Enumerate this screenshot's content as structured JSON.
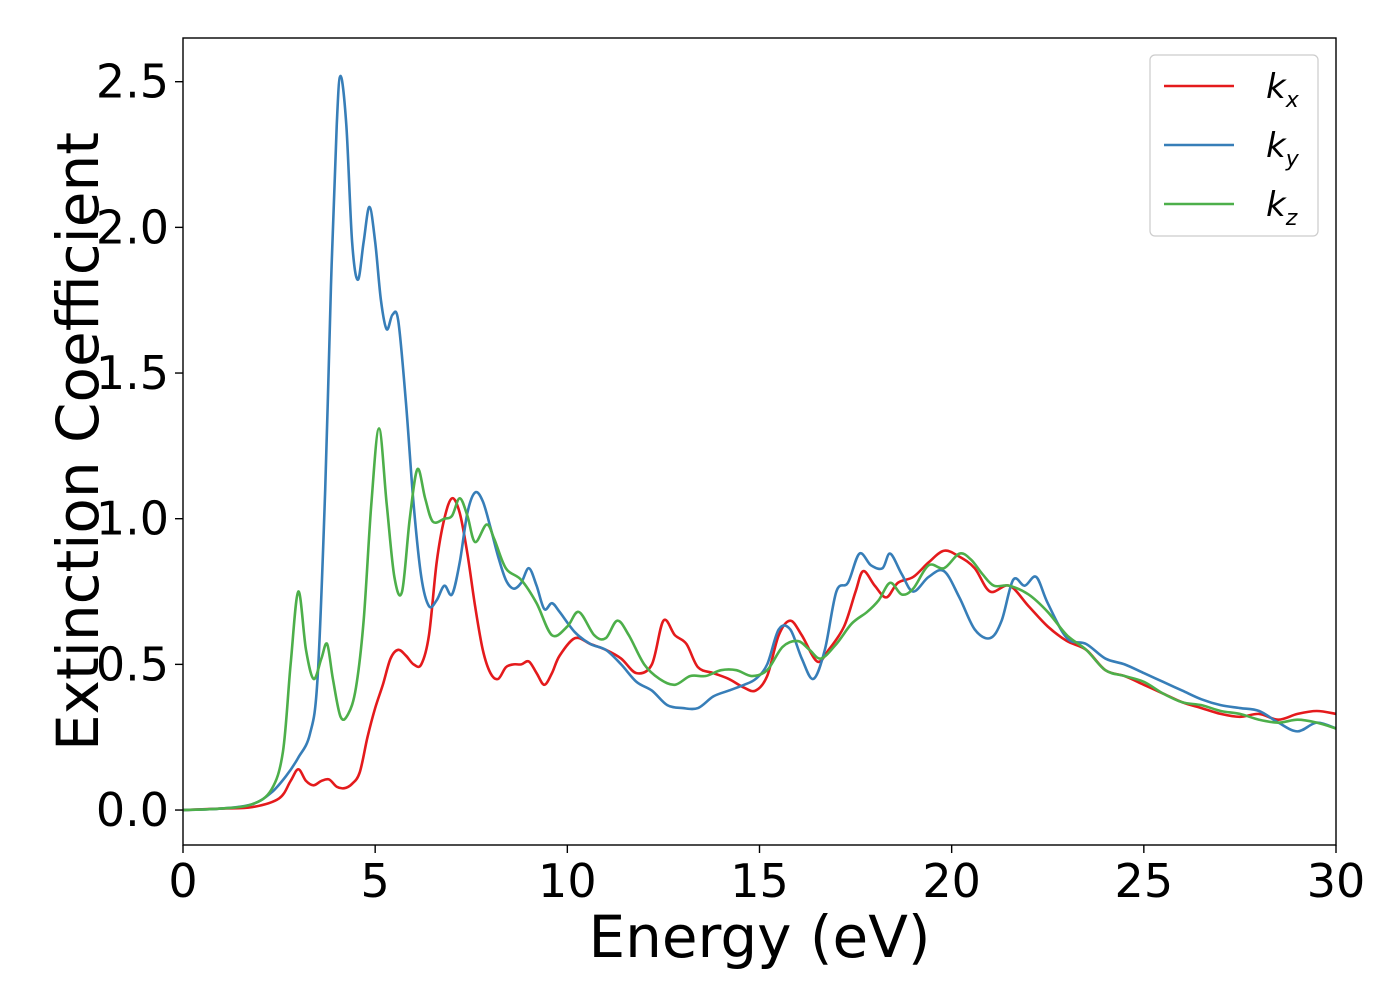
{
  "chart_data": {
    "type": "line",
    "title": "",
    "xlabel": "Energy (eV)",
    "ylabel": "Extinction Coefficient",
    "xlim": [
      0,
      30
    ],
    "ylim": [
      -0.12,
      2.65
    ],
    "xticks": [
      0,
      5,
      10,
      15,
      20,
      25,
      30
    ],
    "xtick_labels": [
      "0",
      "5",
      "10",
      "15",
      "20",
      "25",
      "30"
    ],
    "yticks": [
      0.0,
      0.5,
      1.0,
      1.5,
      2.0,
      2.5
    ],
    "ytick_labels": [
      "0.0",
      "0.5",
      "1.0",
      "1.5",
      "2.0",
      "2.5"
    ],
    "grid": false,
    "legend": {
      "position": "top-right"
    },
    "series": [
      {
        "name": "k_x",
        "label_base": "k",
        "label_sub": "x",
        "color": "#e41a1c",
        "points": [
          [
            0,
            0
          ],
          [
            1,
            0.005
          ],
          [
            1.8,
            0.01
          ],
          [
            2.5,
            0.04
          ],
          [
            2.8,
            0.1
          ],
          [
            3.0,
            0.14
          ],
          [
            3.2,
            0.1
          ],
          [
            3.4,
            0.085
          ],
          [
            3.6,
            0.1
          ],
          [
            3.8,
            0.105
          ],
          [
            4.0,
            0.08
          ],
          [
            4.2,
            0.075
          ],
          [
            4.4,
            0.09
          ],
          [
            4.6,
            0.13
          ],
          [
            4.8,
            0.25
          ],
          [
            5.0,
            0.35
          ],
          [
            5.2,
            0.43
          ],
          [
            5.4,
            0.52
          ],
          [
            5.6,
            0.55
          ],
          [
            5.8,
            0.53
          ],
          [
            6.0,
            0.5
          ],
          [
            6.2,
            0.5
          ],
          [
            6.4,
            0.6
          ],
          [
            6.6,
            0.85
          ],
          [
            6.8,
            1.0
          ],
          [
            7.0,
            1.07
          ],
          [
            7.2,
            1.02
          ],
          [
            7.4,
            0.88
          ],
          [
            7.6,
            0.7
          ],
          [
            7.8,
            0.55
          ],
          [
            8.0,
            0.47
          ],
          [
            8.2,
            0.45
          ],
          [
            8.4,
            0.49
          ],
          [
            8.6,
            0.5
          ],
          [
            8.8,
            0.5
          ],
          [
            9.0,
            0.51
          ],
          [
            9.2,
            0.47
          ],
          [
            9.4,
            0.43
          ],
          [
            9.6,
            0.47
          ],
          [
            9.8,
            0.53
          ],
          [
            10.2,
            0.59
          ],
          [
            10.6,
            0.57
          ],
          [
            11.0,
            0.55
          ],
          [
            11.4,
            0.52
          ],
          [
            11.8,
            0.47
          ],
          [
            12.2,
            0.5
          ],
          [
            12.5,
            0.65
          ],
          [
            12.8,
            0.6
          ],
          [
            13.1,
            0.57
          ],
          [
            13.4,
            0.49
          ],
          [
            13.8,
            0.47
          ],
          [
            14.2,
            0.45
          ],
          [
            14.6,
            0.42
          ],
          [
            14.9,
            0.41
          ],
          [
            15.2,
            0.46
          ],
          [
            15.5,
            0.6
          ],
          [
            15.8,
            0.65
          ],
          [
            16.1,
            0.6
          ],
          [
            16.5,
            0.51
          ],
          [
            16.8,
            0.55
          ],
          [
            17.2,
            0.63
          ],
          [
            17.5,
            0.75
          ],
          [
            17.7,
            0.82
          ],
          [
            18.0,
            0.77
          ],
          [
            18.3,
            0.73
          ],
          [
            18.6,
            0.78
          ],
          [
            19.0,
            0.8
          ],
          [
            19.4,
            0.85
          ],
          [
            19.8,
            0.89
          ],
          [
            20.2,
            0.87
          ],
          [
            20.6,
            0.83
          ],
          [
            21.0,
            0.75
          ],
          [
            21.5,
            0.77
          ],
          [
            22.0,
            0.7
          ],
          [
            22.5,
            0.63
          ],
          [
            23.0,
            0.58
          ],
          [
            23.5,
            0.55
          ],
          [
            24.0,
            0.48
          ],
          [
            24.5,
            0.46
          ],
          [
            25.0,
            0.43
          ],
          [
            25.5,
            0.4
          ],
          [
            26.0,
            0.37
          ],
          [
            26.5,
            0.35
          ],
          [
            27.0,
            0.33
          ],
          [
            27.5,
            0.32
          ],
          [
            28.0,
            0.33
          ],
          [
            28.5,
            0.31
          ],
          [
            29.0,
            0.33
          ],
          [
            29.5,
            0.34
          ],
          [
            30.0,
            0.33
          ]
        ]
      },
      {
        "name": "k_y",
        "label_base": "k",
        "label_sub": "y",
        "color": "#377eb8",
        "points": [
          [
            0,
            0
          ],
          [
            1,
            0.005
          ],
          [
            1.8,
            0.02
          ],
          [
            2.3,
            0.06
          ],
          [
            2.7,
            0.12
          ],
          [
            3.0,
            0.18
          ],
          [
            3.3,
            0.26
          ],
          [
            3.5,
            0.45
          ],
          [
            3.7,
            1.1
          ],
          [
            3.85,
            1.8
          ],
          [
            4.0,
            2.35
          ],
          [
            4.1,
            2.52
          ],
          [
            4.25,
            2.35
          ],
          [
            4.4,
            1.95
          ],
          [
            4.55,
            1.82
          ],
          [
            4.7,
            1.95
          ],
          [
            4.85,
            2.07
          ],
          [
            5.0,
            1.95
          ],
          [
            5.15,
            1.75
          ],
          [
            5.3,
            1.65
          ],
          [
            5.45,
            1.7
          ],
          [
            5.6,
            1.68
          ],
          [
            5.8,
            1.4
          ],
          [
            6.0,
            1.05
          ],
          [
            6.2,
            0.8
          ],
          [
            6.4,
            0.7
          ],
          [
            6.6,
            0.72
          ],
          [
            6.8,
            0.77
          ],
          [
            7.0,
            0.74
          ],
          [
            7.2,
            0.85
          ],
          [
            7.4,
            1.02
          ],
          [
            7.6,
            1.09
          ],
          [
            7.8,
            1.06
          ],
          [
            8.0,
            0.97
          ],
          [
            8.2,
            0.87
          ],
          [
            8.4,
            0.79
          ],
          [
            8.6,
            0.76
          ],
          [
            8.8,
            0.78
          ],
          [
            9.0,
            0.83
          ],
          [
            9.2,
            0.77
          ],
          [
            9.4,
            0.69
          ],
          [
            9.6,
            0.71
          ],
          [
            9.8,
            0.68
          ],
          [
            10.2,
            0.61
          ],
          [
            10.6,
            0.57
          ],
          [
            11.0,
            0.55
          ],
          [
            11.4,
            0.5
          ],
          [
            11.8,
            0.44
          ],
          [
            12.2,
            0.41
          ],
          [
            12.6,
            0.36
          ],
          [
            13.0,
            0.35
          ],
          [
            13.4,
            0.35
          ],
          [
            13.8,
            0.39
          ],
          [
            14.2,
            0.41
          ],
          [
            14.6,
            0.43
          ],
          [
            14.9,
            0.45
          ],
          [
            15.2,
            0.5
          ],
          [
            15.5,
            0.62
          ],
          [
            15.8,
            0.62
          ],
          [
            16.1,
            0.52
          ],
          [
            16.4,
            0.45
          ],
          [
            16.7,
            0.55
          ],
          [
            17.0,
            0.75
          ],
          [
            17.3,
            0.78
          ],
          [
            17.6,
            0.88
          ],
          [
            17.9,
            0.84
          ],
          [
            18.2,
            0.83
          ],
          [
            18.4,
            0.88
          ],
          [
            18.7,
            0.81
          ],
          [
            19.0,
            0.75
          ],
          [
            19.4,
            0.8
          ],
          [
            19.8,
            0.82
          ],
          [
            20.2,
            0.73
          ],
          [
            20.6,
            0.62
          ],
          [
            21.0,
            0.59
          ],
          [
            21.3,
            0.65
          ],
          [
            21.6,
            0.79
          ],
          [
            21.9,
            0.77
          ],
          [
            22.2,
            0.8
          ],
          [
            22.5,
            0.71
          ],
          [
            23.0,
            0.59
          ],
          [
            23.5,
            0.57
          ],
          [
            24.0,
            0.52
          ],
          [
            24.5,
            0.5
          ],
          [
            25.0,
            0.47
          ],
          [
            25.5,
            0.44
          ],
          [
            26.0,
            0.41
          ],
          [
            26.5,
            0.38
          ],
          [
            27.0,
            0.36
          ],
          [
            27.5,
            0.35
          ],
          [
            28.0,
            0.34
          ],
          [
            28.5,
            0.3
          ],
          [
            29.0,
            0.27
          ],
          [
            29.5,
            0.3
          ],
          [
            30.0,
            0.28
          ]
        ]
      },
      {
        "name": "k_z",
        "label_base": "k",
        "label_sub": "z",
        "color": "#4daf4a",
        "points": [
          [
            0,
            0
          ],
          [
            1,
            0.005
          ],
          [
            1.8,
            0.02
          ],
          [
            2.3,
            0.07
          ],
          [
            2.6,
            0.2
          ],
          [
            2.8,
            0.5
          ],
          [
            3.0,
            0.75
          ],
          [
            3.2,
            0.55
          ],
          [
            3.4,
            0.45
          ],
          [
            3.6,
            0.52
          ],
          [
            3.75,
            0.57
          ],
          [
            3.9,
            0.45
          ],
          [
            4.1,
            0.32
          ],
          [
            4.3,
            0.33
          ],
          [
            4.5,
            0.42
          ],
          [
            4.7,
            0.65
          ],
          [
            4.9,
            1.05
          ],
          [
            5.1,
            1.31
          ],
          [
            5.3,
            1.05
          ],
          [
            5.5,
            0.8
          ],
          [
            5.7,
            0.75
          ],
          [
            5.9,
            1.0
          ],
          [
            6.1,
            1.17
          ],
          [
            6.3,
            1.07
          ],
          [
            6.5,
            0.99
          ],
          [
            6.8,
            1.0
          ],
          [
            7.0,
            1.01
          ],
          [
            7.2,
            1.07
          ],
          [
            7.4,
            1.01
          ],
          [
            7.6,
            0.92
          ],
          [
            7.9,
            0.98
          ],
          [
            8.1,
            0.93
          ],
          [
            8.4,
            0.83
          ],
          [
            8.8,
            0.79
          ],
          [
            9.2,
            0.71
          ],
          [
            9.6,
            0.6
          ],
          [
            10.0,
            0.63
          ],
          [
            10.3,
            0.68
          ],
          [
            10.7,
            0.6
          ],
          [
            11.0,
            0.59
          ],
          [
            11.3,
            0.65
          ],
          [
            11.6,
            0.6
          ],
          [
            12.0,
            0.5
          ],
          [
            12.4,
            0.45
          ],
          [
            12.8,
            0.43
          ],
          [
            13.2,
            0.46
          ],
          [
            13.6,
            0.46
          ],
          [
            14.0,
            0.48
          ],
          [
            14.4,
            0.48
          ],
          [
            14.8,
            0.46
          ],
          [
            15.2,
            0.48
          ],
          [
            15.6,
            0.56
          ],
          [
            16.0,
            0.58
          ],
          [
            16.3,
            0.55
          ],
          [
            16.6,
            0.52
          ],
          [
            17.0,
            0.57
          ],
          [
            17.4,
            0.64
          ],
          [
            17.8,
            0.68
          ],
          [
            18.1,
            0.72
          ],
          [
            18.4,
            0.78
          ],
          [
            18.7,
            0.74
          ],
          [
            19.0,
            0.76
          ],
          [
            19.4,
            0.84
          ],
          [
            19.8,
            0.83
          ],
          [
            20.2,
            0.88
          ],
          [
            20.5,
            0.86
          ],
          [
            20.8,
            0.81
          ],
          [
            21.1,
            0.77
          ],
          [
            21.5,
            0.77
          ],
          [
            22.0,
            0.74
          ],
          [
            22.5,
            0.68
          ],
          [
            23.0,
            0.6
          ],
          [
            23.5,
            0.55
          ],
          [
            24.0,
            0.48
          ],
          [
            24.5,
            0.46
          ],
          [
            25.0,
            0.44
          ],
          [
            25.5,
            0.4
          ],
          [
            26.0,
            0.37
          ],
          [
            26.5,
            0.36
          ],
          [
            27.0,
            0.34
          ],
          [
            27.5,
            0.33
          ],
          [
            28.0,
            0.31
          ],
          [
            28.5,
            0.3
          ],
          [
            29.0,
            0.31
          ],
          [
            29.5,
            0.3
          ],
          [
            30.0,
            0.28
          ]
        ]
      }
    ]
  }
}
